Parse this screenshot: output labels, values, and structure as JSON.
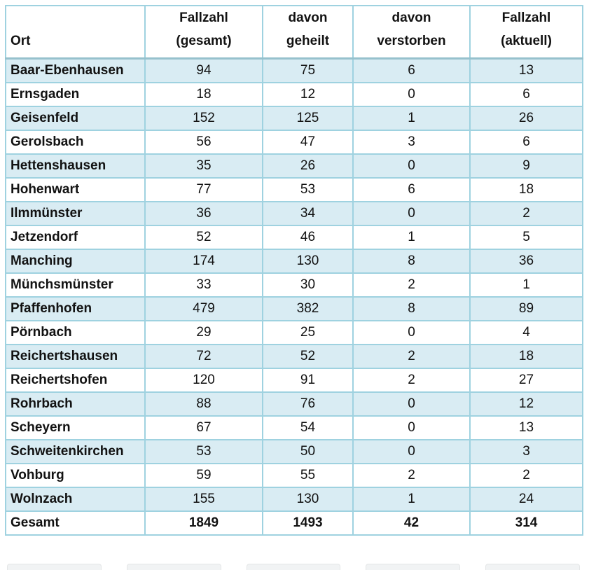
{
  "colors": {
    "row_alt": "#d9ecf3",
    "grid_border": "#9fd2e0",
    "header_separator": "#96c1cd",
    "text": "#121212",
    "background": "#ffffff"
  },
  "table": {
    "columns": [
      {
        "id": "ort",
        "lines": [
          "Ort"
        ]
      },
      {
        "id": "fallzahl-gesamt",
        "lines": [
          "Fallzahl",
          "(gesamt)"
        ]
      },
      {
        "id": "davon-geheilt",
        "lines": [
          "davon",
          "geheilt"
        ]
      },
      {
        "id": "davon-verstorben",
        "lines": [
          "davon",
          "verstorben"
        ]
      },
      {
        "id": "fallzahl-aktuell",
        "lines": [
          "Fallzahl",
          "(aktuell)"
        ]
      }
    ],
    "rows": [
      {
        "ort": "Baar-Ebenhausen",
        "values": [
          94,
          75,
          6,
          13
        ]
      },
      {
        "ort": "Ernsgaden",
        "values": [
          18,
          12,
          0,
          6
        ]
      },
      {
        "ort": "Geisenfeld",
        "values": [
          152,
          125,
          1,
          26
        ]
      },
      {
        "ort": "Gerolsbach",
        "values": [
          56,
          47,
          3,
          6
        ]
      },
      {
        "ort": "Hettenshausen",
        "values": [
          35,
          26,
          0,
          9
        ]
      },
      {
        "ort": "Hohenwart",
        "values": [
          77,
          53,
          6,
          18
        ]
      },
      {
        "ort": "Ilmmünster",
        "values": [
          36,
          34,
          0,
          2
        ]
      },
      {
        "ort": "Jetzendorf",
        "values": [
          52,
          46,
          1,
          5
        ]
      },
      {
        "ort": "Manching",
        "values": [
          174,
          130,
          8,
          36
        ]
      },
      {
        "ort": "Münchsmünster",
        "values": [
          33,
          30,
          2,
          1
        ]
      },
      {
        "ort": "Pfaffenhofen",
        "values": [
          479,
          382,
          8,
          89
        ]
      },
      {
        "ort": "Pörnbach",
        "values": [
          29,
          25,
          0,
          4
        ]
      },
      {
        "ort": "Reichertshausen",
        "values": [
          72,
          52,
          2,
          18
        ]
      },
      {
        "ort": "Reichertshofen",
        "values": [
          120,
          91,
          2,
          27
        ]
      },
      {
        "ort": "Rohrbach",
        "values": [
          88,
          76,
          0,
          12
        ]
      },
      {
        "ort": "Scheyern",
        "values": [
          67,
          54,
          0,
          13
        ]
      },
      {
        "ort": "Schweitenkirchen",
        "values": [
          53,
          50,
          0,
          3
        ]
      },
      {
        "ort": "Vohburg",
        "values": [
          59,
          55,
          2,
          2
        ]
      },
      {
        "ort": "Wolnzach",
        "values": [
          155,
          130,
          1,
          24
        ]
      }
    ],
    "total_row": {
      "ort": "Gesamt",
      "values": [
        1849,
        1493,
        42,
        314
      ]
    }
  }
}
